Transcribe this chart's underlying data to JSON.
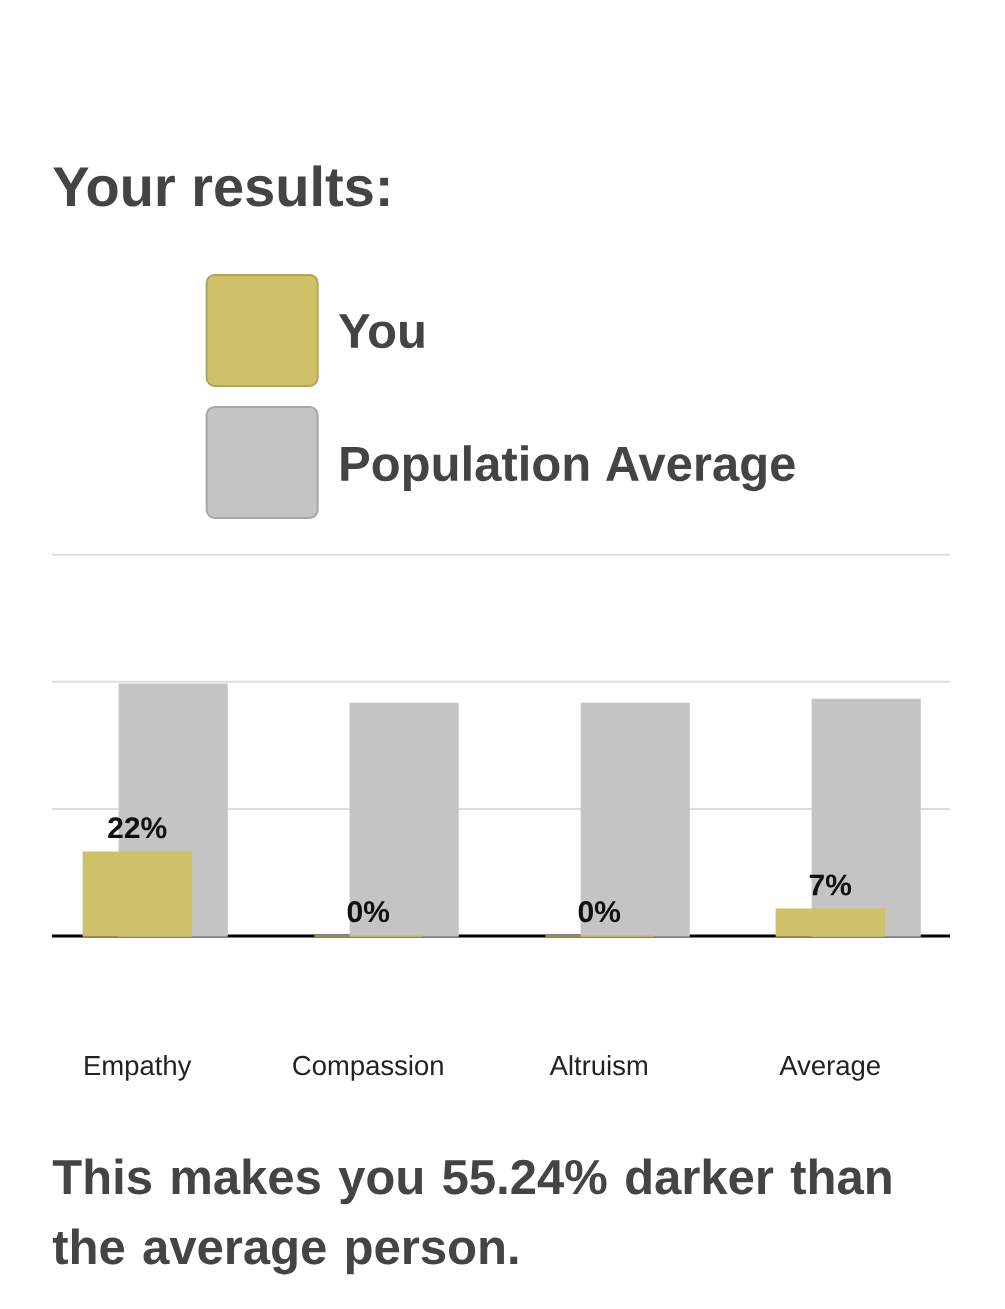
{
  "chart_data": {
    "type": "bar",
    "title": "Your results:",
    "categories": [
      "Empathy",
      "Compassion",
      "Altruism",
      "Average"
    ],
    "series": [
      {
        "name": "You",
        "color": "#cfc06a",
        "values": [
          22,
          0,
          0,
          7
        ],
        "value_labels": [
          "22%",
          "0%",
          "0%",
          "7%"
        ]
      },
      {
        "name": "Population Average",
        "color": "#c4c4c4",
        "values": [
          66,
          61,
          61,
          62
        ]
      }
    ],
    "ylim": [
      0,
      100
    ],
    "yticks": [
      {
        "value": 0,
        "label": null
      },
      {
        "value": 33.3,
        "label": null
      },
      {
        "value": 66.7,
        "label": null
      },
      {
        "value": 100,
        "label": null
      }
    ],
    "grid": "y",
    "legend": "top",
    "tick_labels": "x",
    "annotations": [
      "This makes you 55.24% darker than the average person."
    ]
  }
}
